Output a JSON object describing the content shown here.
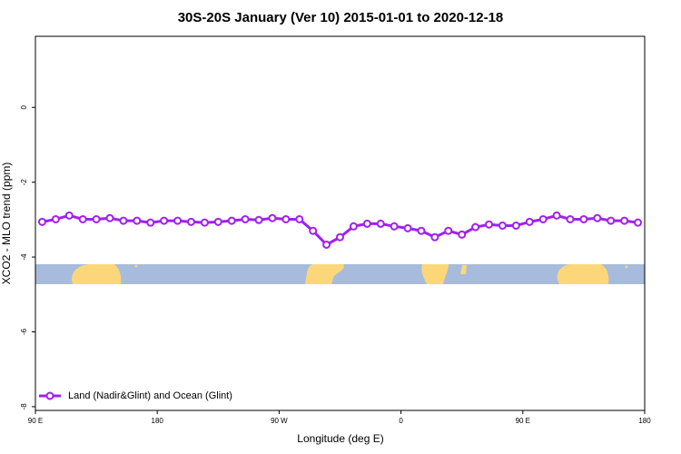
{
  "chart_data": {
    "type": "line",
    "title": "30S-20S January (Ver 10)   2015-01-01 to 2020-12-18",
    "xlabel": "Longitude (deg E)",
    "ylabel": "XCO2 - MLO trend (ppm)",
    "x": [
      95,
      105,
      115,
      125,
      135,
      145,
      155,
      165,
      175,
      185,
      195,
      205,
      215,
      225,
      235,
      245,
      255,
      265,
      275,
      285,
      295,
      305,
      315,
      325,
      335,
      345,
      355,
      365,
      375,
      385,
      395,
      405,
      415,
      425,
      435,
      445,
      455,
      465,
      475,
      485,
      495,
      505,
      515,
      525,
      535
    ],
    "series": [
      {
        "name": "Land (Nadir&Glint) and Ocean (Glint)",
        "color": "#a020f0",
        "values": [
          -3.06,
          -2.99,
          -2.89,
          -2.99,
          -2.99,
          -2.96,
          -3.03,
          -3.03,
          -3.08,
          -3.03,
          -3.03,
          -3.06,
          -3.08,
          -3.06,
          -3.03,
          -2.99,
          -3.01,
          -2.96,
          -2.99,
          -2.99,
          -3.3,
          -3.67,
          -3.47,
          -3.18,
          -3.11,
          -3.11,
          -3.18,
          -3.23,
          -3.3,
          -3.47,
          -3.3,
          -3.4,
          -3.2,
          -3.13,
          -3.16,
          -3.16,
          -3.06,
          -2.99,
          -2.89,
          -2.99,
          -2.99,
          -2.96,
          -3.03,
          -3.03,
          -3.08
        ]
      }
    ],
    "xlim": [
      90,
      540
    ],
    "xticks": [
      {
        "value": 90,
        "label": "90 E"
      },
      {
        "value": 180,
        "label": "180"
      },
      {
        "value": 270,
        "label": "90 W"
      },
      {
        "value": 360,
        "label": "0"
      },
      {
        "value": 450,
        "label": "90 E"
      },
      {
        "value": 540,
        "label": "180"
      }
    ],
    "ylim": [
      -8.1,
      1.9
    ],
    "yticks": [
      0,
      -2,
      -4,
      -6,
      -8
    ],
    "grid": false,
    "legend": "lower left"
  }
}
